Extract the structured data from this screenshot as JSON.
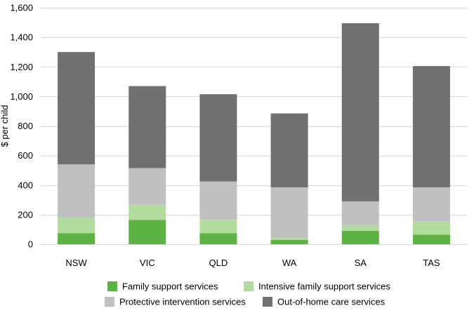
{
  "chart_data": {
    "type": "bar",
    "stacked": true,
    "title": "",
    "xlabel": "",
    "ylabel": "$ per child",
    "ylim": [
      0,
      1600
    ],
    "yticks": [
      0,
      200,
      400,
      600,
      800,
      1000,
      1200,
      1400,
      1600
    ],
    "ytick_labels": [
      "0",
      "200",
      "400",
      "600",
      "800",
      "1,000",
      "1,200",
      "1,400",
      "1,600"
    ],
    "categories": [
      "NSW",
      "VIC",
      "QLD",
      "WA",
      "SA",
      "TAS"
    ],
    "series": [
      {
        "name": "Family support services",
        "color": "#5cb342",
        "values": [
          75,
          165,
          75,
          30,
          90,
          65
        ]
      },
      {
        "name": "Intensive family support services",
        "color": "#b2dc9e",
        "values": [
          105,
          105,
          90,
          15,
          40,
          90
        ]
      },
      {
        "name": "Protective intervention services",
        "color": "#c0c0c0",
        "values": [
          360,
          245,
          260,
          340,
          160,
          230
        ]
      },
      {
        "name": "Out-of-home care services",
        "color": "#717070",
        "values": [
          760,
          555,
          590,
          500,
          1205,
          820
        ]
      }
    ],
    "legend_position": "bottom"
  }
}
